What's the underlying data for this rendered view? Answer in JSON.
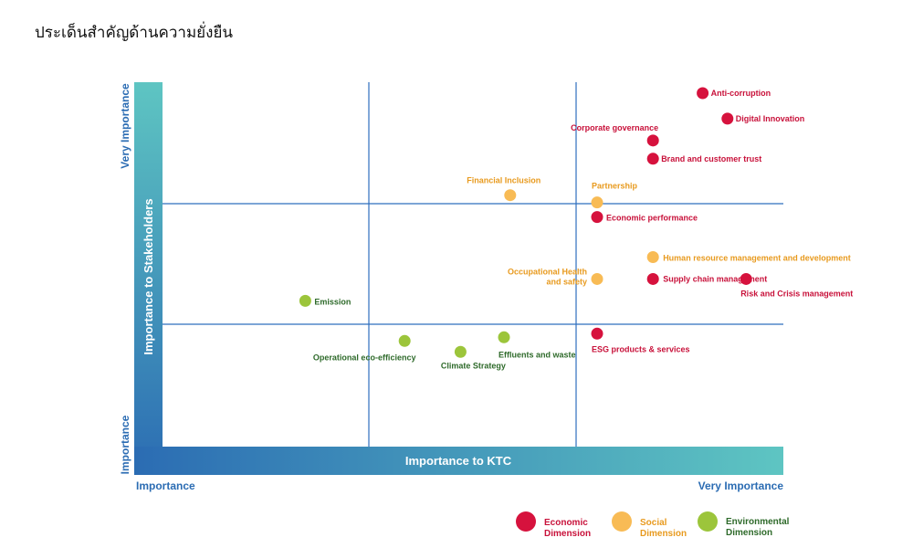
{
  "title": "ประเด็นสำคัญด้านความยั่งยืน",
  "colors": {
    "economic": "#d6123d",
    "social": "#f8bb55",
    "environmental": "#9cc53b",
    "axis_blue": "#2b6cb3",
    "axis_teal": "#5ec5c2",
    "grid": "#2e6fbe",
    "economic_text": "#c8113a",
    "social_text": "#e89a1e",
    "environmental_text": "#2e6a2a"
  },
  "chart_data": {
    "type": "scatter",
    "xlabel": "Importance to KTC",
    "ylabel": "Importance to Stakeholders",
    "x_range_labels": [
      "Importance",
      "Very Importance"
    ],
    "y_range_labels": [
      "Importance",
      "Very Importance"
    ],
    "xlim": [
      0,
      10
    ],
    "ylim": [
      0,
      10
    ],
    "grid": "thirds",
    "legend_position": "bottom-right",
    "series": [
      {
        "name": "Economic Dimension",
        "points": [
          {
            "x": 8.7,
            "y": 9.7,
            "label": "Anti-corruption"
          },
          {
            "x": 9.1,
            "y": 9.0,
            "label": "Digital Innovation"
          },
          {
            "x": 7.9,
            "y": 8.4,
            "label": "Corporate governance"
          },
          {
            "x": 7.9,
            "y": 7.9,
            "label": "Brand and customer trust"
          },
          {
            "x": 7.0,
            "y": 6.3,
            "label": "Economic performance"
          },
          {
            "x": 7.9,
            "y": 4.6,
            "label": "Supply chain management"
          },
          {
            "x": 9.4,
            "y": 4.6,
            "label": "Risk and Crisis management"
          },
          {
            "x": 7.0,
            "y": 3.1,
            "label": "ESG products & services"
          }
        ]
      },
      {
        "name": "Social Dimension",
        "points": [
          {
            "x": 5.6,
            "y": 6.9,
            "label": "Financial Inclusion"
          },
          {
            "x": 7.0,
            "y": 6.7,
            "label": "Partnership"
          },
          {
            "x": 7.9,
            "y": 5.2,
            "label": "Human resource management and development"
          },
          {
            "x": 7.0,
            "y": 4.6,
            "label": "Occupational Health and safety"
          }
        ]
      },
      {
        "name": "Environmental Dimension",
        "points": [
          {
            "x": 2.3,
            "y": 4.0,
            "label": "Emission"
          },
          {
            "x": 3.9,
            "y": 2.9,
            "label": "Operational eco-efficiency"
          },
          {
            "x": 4.8,
            "y": 2.6,
            "label": "Climate Strategy"
          },
          {
            "x": 5.5,
            "y": 3.0,
            "label": "Effluents and waste"
          }
        ]
      }
    ]
  },
  "legend": [
    {
      "key": "economic",
      "line1": "Economic",
      "line2": "Dimension"
    },
    {
      "key": "social",
      "line1": "Social",
      "line2": "Dimension"
    },
    {
      "key": "environmental",
      "line1": "Environmental",
      "line2": "Dimension"
    }
  ]
}
